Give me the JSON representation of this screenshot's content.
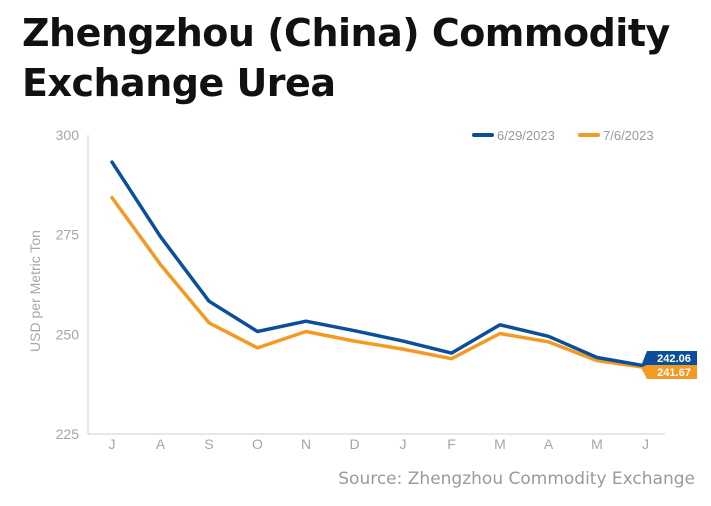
{
  "title": "Zhengzhou (China) Commodity Exchange Urea",
  "source": "Source: Zhengzhou Commodity Exchange",
  "chart_data": {
    "type": "line",
    "title": "Zhengzhou (China) Commodity Exchange Urea",
    "ylabel": "USD per Metric Ton",
    "xlabel": "",
    "categories": [
      "J",
      "A",
      "S",
      "O",
      "N",
      "D",
      "J",
      "F",
      "M",
      "A",
      "M",
      "J"
    ],
    "ylim": [
      225,
      300
    ],
    "yticks": [
      225,
      250,
      275,
      300
    ],
    "grid": false,
    "legend_position": "top-right",
    "series": [
      {
        "name": "6/29/2023",
        "color": "#0b4f9c",
        "values": [
          293.2,
          274.5,
          258.3,
          250.7,
          253.3,
          250.9,
          248.3,
          245.3,
          252.4,
          249.5,
          244.2,
          242.06
        ],
        "end_label": "242.06"
      },
      {
        "name": "7/6/2023",
        "color": "#f39a24",
        "values": [
          284.3,
          267.5,
          252.9,
          246.6,
          250.7,
          248.3,
          246.3,
          243.9,
          250.2,
          248.1,
          243.4,
          241.67
        ],
        "end_label": "241.67"
      }
    ]
  }
}
